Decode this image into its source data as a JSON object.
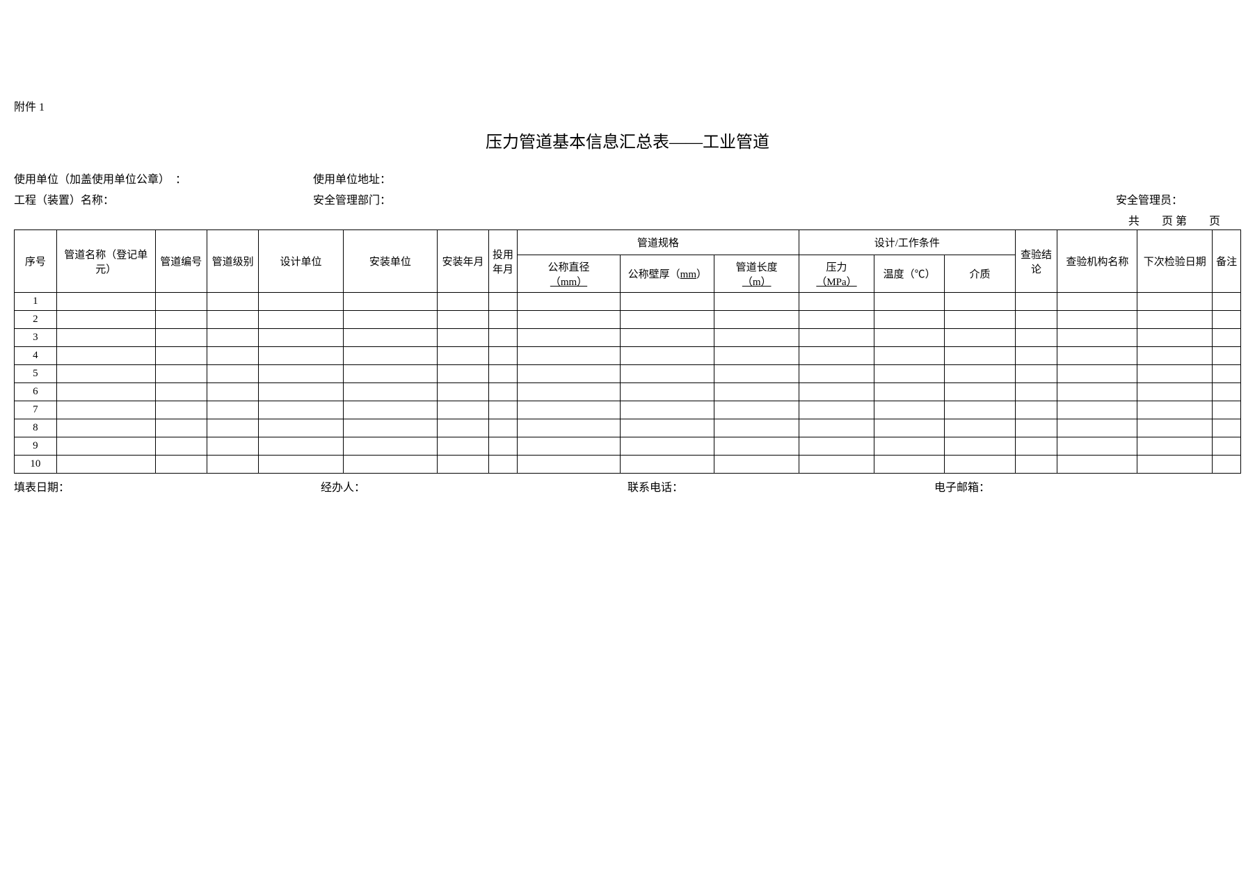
{
  "attachment": "附件 1",
  "title": "压力管道基本信息汇总表——工业管道",
  "info": {
    "unit_label": "使用单位（加盖使用单位公章）　：",
    "addr_label": "使用单位地址：",
    "proj_label": "工程（装置）名称：",
    "dept_label": "安全管理部门：",
    "admin_label": "安全管理员："
  },
  "page": {
    "total_pre": "共",
    "total_mid": "页 第",
    "total_suf": "页"
  },
  "headers": {
    "seq": "序号",
    "name": "管道名称（登记单元）",
    "pno": "管道编号",
    "level": "管道级别",
    "design": "设计单位",
    "install": "安装单位",
    "installdate": "安装年月",
    "usedate": "投用年月",
    "spec": "管道规格",
    "cond": "设计/工作条件",
    "concl": "查验结论",
    "org": "查验机构名称",
    "next": "下次检验日期",
    "remark": "备注",
    "dn": "公称直径",
    "dn_unit": "（mm）",
    "thick": "公称壁厚（",
    "thick_unit": "mm",
    "thick_suf": "）",
    "len": "管道长度",
    "len_unit": "（m）",
    "pressure": "压力",
    "pressure_unit": "（MPa）",
    "temp": "温度（℃）",
    "medium": "介质"
  },
  "rows": [
    "1",
    "2",
    "3",
    "4",
    "5",
    "6",
    "7",
    "8",
    "9",
    "10"
  ],
  "footer": {
    "date": "填表日期：",
    "person": "经办人：",
    "phone": "联系电话：",
    "email": "电子邮箱："
  }
}
